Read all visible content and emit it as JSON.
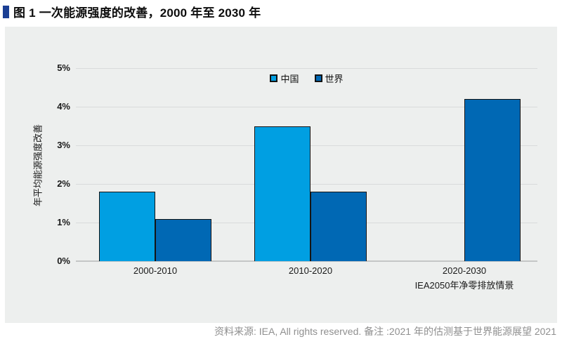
{
  "page": {
    "title": "图 1 一次能源强度的改善，2000 年至 2030 年",
    "title_marker_color": "#1b3f94",
    "footer": "资料来源: IEA, All rights reserved. 备注 :2021 年的估测基于世界能源展望 2021"
  },
  "chart_data": {
    "type": "bar",
    "title": "图 1 一次能源强度的改善，2000 年至 2030 年",
    "categories": [
      "2000-2010",
      "2010-2020",
      "2020-2030"
    ],
    "category_sublabels": [
      "",
      "",
      "IEA2050年净零排放情景"
    ],
    "series": [
      {
        "name": "中国",
        "color": "#009FE2",
        "values": [
          1.8,
          3.5,
          null
        ]
      },
      {
        "name": "世界",
        "color": "#0068B4",
        "values": [
          1.1,
          1.8,
          4.2
        ]
      }
    ],
    "ylabel": "年平均能源强度改善",
    "yticks": [
      "0%",
      "1%",
      "2%",
      "3%",
      "4%",
      "5%"
    ],
    "ylim": [
      0,
      5
    ],
    "grid": true,
    "legend_position": "top-center",
    "plot_bg": "#edefee"
  }
}
